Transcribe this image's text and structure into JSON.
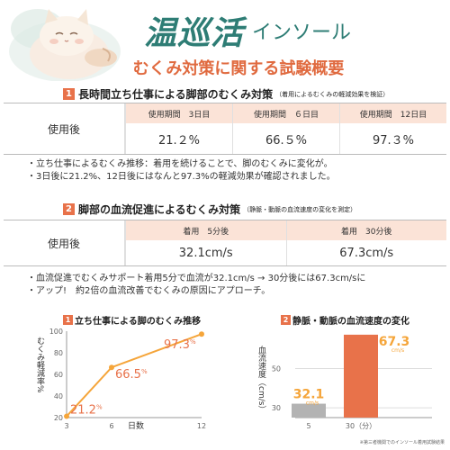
{
  "header": {
    "brand": "温巡活",
    "brand_sub": "インソール",
    "title": "むくみ対策に関する試験概要"
  },
  "section1": {
    "number": "1",
    "title": "長時間立ち仕事による脚部のむくみ対策",
    "note": "（着用によるむくみの軽減効果を検証）",
    "row_label": "使用後",
    "columns": [
      {
        "head": "使用期間　3日目",
        "value": "21.２%"
      },
      {
        "head": "使用期間　６日目",
        "value": "66.５%"
      },
      {
        "head": "使用期間　12日目",
        "value": "97.３%"
      }
    ],
    "bullets": [
      "・立ち仕事によるむくみ推移：着用を続けることで、脚のむくみに変化が。",
      "・3日後に21.2%、12日後にはなんと97.3%の軽減効果が確認されました。"
    ]
  },
  "section2": {
    "number": "2",
    "title": "脚部の血流促進によるむくみ対策",
    "note": "（静脈・動脈の血流速度の変化を測定）",
    "row_label": "使用後",
    "columns": [
      {
        "head": "着用　5分後",
        "value": "32.1cm/s"
      },
      {
        "head": "着用　30分後",
        "value": "67.3cm/s"
      }
    ],
    "bullets": [
      "・血流促進でむくみサポート着用5分で血流が32.1cm/s → 30分後には67.3cm/sに",
      "・アップ!　約2倍の血流改善でむくみの原因にアプローチ。"
    ]
  },
  "chart1_head": {
    "number": "1",
    "title": "立ち仕事による脚のむくみ推移"
  },
  "chart2_head": {
    "number": "2",
    "title": "静脈・動脈の血流速度の変化"
  },
  "chart_data": [
    {
      "type": "line",
      "x": [
        3,
        6,
        12
      ],
      "values": [
        21.2,
        66.5,
        97.3
      ],
      "labels": [
        "21.2",
        "66.5",
        "97.3"
      ],
      "label_suffix": "%",
      "xlabel": "日数",
      "ylabel": "むくみ軽減率%",
      "xticks": [
        "3",
        "6",
        "12"
      ],
      "yticks": [
        20,
        40,
        60,
        80,
        100
      ],
      "ylim": [
        20,
        100
      ],
      "grid": false,
      "colors": {
        "line": "#f5a53a",
        "label": "#e8724a"
      }
    },
    {
      "type": "bar",
      "categories": [
        "5",
        "30（分）"
      ],
      "values": [
        32.1,
        67.3
      ],
      "labels": [
        "32.1",
        "67.3"
      ],
      "unit": "cm/s",
      "ylabel": "血流速度（cm/s）",
      "yticks": [
        30,
        50
      ],
      "ylim": [
        25,
        70
      ],
      "grid": true,
      "colors": {
        "bars": [
          "#b3b3b3",
          "#e8724a"
        ],
        "label": "#f5a53a"
      }
    }
  ],
  "footnote": "※第三者機関でのインソール着用試験結果",
  "colors": {
    "accent": "#e8724a",
    "brand": "#2e7d75",
    "header_fill": "#fbe3d7"
  }
}
